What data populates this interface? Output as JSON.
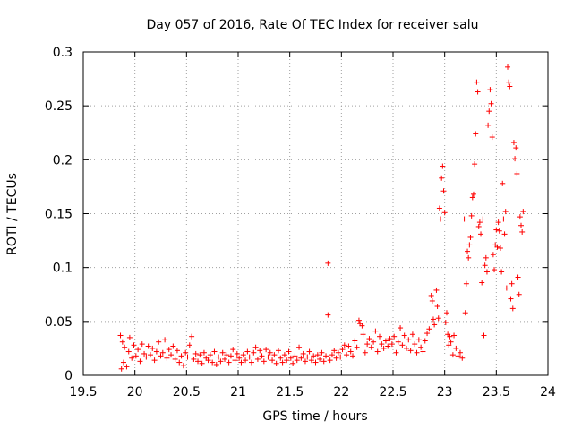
{
  "chart_data": {
    "type": "scatter",
    "title": "Day 057 of 2016, Rate Of TEC Index for receiver salu",
    "xlabel": "GPS time / hours",
    "ylabel": "ROTI / TECUs",
    "xlim": [
      19.5,
      24
    ],
    "ylim": [
      0,
      0.3
    ],
    "xticks": [
      19.5,
      20,
      20.5,
      21,
      21.5,
      22,
      22.5,
      23,
      23.5,
      24
    ],
    "xtick_labels": [
      "19.5",
      "20",
      "20.5",
      "21",
      "21.5",
      "22",
      "22.5",
      "23",
      "23.5",
      "24"
    ],
    "yticks": [
      0,
      0.05,
      0.1,
      0.15,
      0.2,
      0.25,
      0.3
    ],
    "ytick_labels": [
      "0",
      "0.05",
      "0.1",
      "0.15",
      "0.2",
      "0.25",
      "0.3"
    ],
    "grid": true,
    "marker": "+",
    "series": [
      {
        "name": "ROTI",
        "color": "#ff0000",
        "points": [
          [
            19.86,
            0.037
          ],
          [
            19.87,
            0.006
          ],
          [
            19.88,
            0.031
          ],
          [
            19.89,
            0.012
          ],
          [
            19.9,
            0.026
          ],
          [
            19.92,
            0.008
          ],
          [
            19.94,
            0.022
          ],
          [
            19.95,
            0.035
          ],
          [
            19.97,
            0.016
          ],
          [
            19.99,
            0.028
          ],
          [
            20.01,
            0.018
          ],
          [
            20.03,
            0.024
          ],
          [
            20.05,
            0.013
          ],
          [
            20.07,
            0.029
          ],
          [
            20.09,
            0.02
          ],
          [
            20.11,
            0.017
          ],
          [
            20.13,
            0.027
          ],
          [
            20.15,
            0.019
          ],
          [
            20.17,
            0.025
          ],
          [
            20.19,
            0.014
          ],
          [
            20.21,
            0.022
          ],
          [
            20.23,
            0.031
          ],
          [
            20.25,
            0.018
          ],
          [
            20.27,
            0.021
          ],
          [
            20.29,
            0.033
          ],
          [
            20.31,
            0.016
          ],
          [
            20.33,
            0.024
          ],
          [
            20.35,
            0.019
          ],
          [
            20.37,
            0.027
          ],
          [
            20.39,
            0.015
          ],
          [
            20.41,
            0.023
          ],
          [
            20.43,
            0.012
          ],
          [
            20.45,
            0.018
          ],
          [
            20.47,
            0.009
          ],
          [
            20.49,
            0.021
          ],
          [
            20.51,
            0.017
          ],
          [
            20.53,
            0.028
          ],
          [
            20.55,
            0.036
          ],
          [
            20.57,
            0.015
          ],
          [
            20.59,
            0.02
          ],
          [
            20.61,
            0.013
          ],
          [
            20.63,
            0.019
          ],
          [
            20.65,
            0.011
          ],
          [
            20.67,
            0.021
          ],
          [
            20.69,
            0.016
          ],
          [
            20.71,
            0.014
          ],
          [
            20.73,
            0.019
          ],
          [
            20.75,
            0.012
          ],
          [
            20.77,
            0.022
          ],
          [
            20.79,
            0.01
          ],
          [
            20.81,
            0.017
          ],
          [
            20.83,
            0.013
          ],
          [
            20.85,
            0.021
          ],
          [
            20.87,
            0.015
          ],
          [
            20.89,
            0.019
          ],
          [
            20.91,
            0.012
          ],
          [
            20.93,
            0.018
          ],
          [
            20.95,
            0.024
          ],
          [
            20.97,
            0.014
          ],
          [
            20.99,
            0.02
          ],
          [
            21.01,
            0.016
          ],
          [
            21.03,
            0.012
          ],
          [
            21.05,
            0.019
          ],
          [
            21.07,
            0.014
          ],
          [
            21.09,
            0.022
          ],
          [
            21.11,
            0.017
          ],
          [
            21.13,
            0.012
          ],
          [
            21.15,
            0.021
          ],
          [
            21.17,
            0.026
          ],
          [
            21.19,
            0.015
          ],
          [
            21.21,
            0.023
          ],
          [
            21.23,
            0.018
          ],
          [
            21.25,
            0.013
          ],
          [
            21.27,
            0.024
          ],
          [
            21.29,
            0.017
          ],
          [
            21.31,
            0.021
          ],
          [
            21.33,
            0.014
          ],
          [
            21.35,
            0.019
          ],
          [
            21.37,
            0.011
          ],
          [
            21.39,
            0.023
          ],
          [
            21.41,
            0.016
          ],
          [
            21.43,
            0.012
          ],
          [
            21.45,
            0.019
          ],
          [
            21.47,
            0.014
          ],
          [
            21.49,
            0.022
          ],
          [
            21.51,
            0.016
          ],
          [
            21.53,
            0.011
          ],
          [
            21.55,
            0.018
          ],
          [
            21.57,
            0.014
          ],
          [
            21.59,
            0.026
          ],
          [
            21.61,
            0.016
          ],
          [
            21.63,
            0.02
          ],
          [
            21.65,
            0.013
          ],
          [
            21.67,
            0.017
          ],
          [
            21.69,
            0.022
          ],
          [
            21.71,
            0.014
          ],
          [
            21.73,
            0.018
          ],
          [
            21.75,
            0.012
          ],
          [
            21.77,
            0.019
          ],
          [
            21.79,
            0.015
          ],
          [
            21.81,
            0.021
          ],
          [
            21.83,
            0.013
          ],
          [
            21.85,
            0.018
          ],
          [
            21.87,
            0.104
          ],
          [
            21.87,
            0.056
          ],
          [
            21.89,
            0.014
          ],
          [
            21.91,
            0.019
          ],
          [
            21.93,
            0.023
          ],
          [
            21.95,
            0.016
          ],
          [
            21.97,
            0.021
          ],
          [
            21.99,
            0.017
          ],
          [
            22.01,
            0.024
          ],
          [
            22.03,
            0.028
          ],
          [
            22.05,
            0.019
          ],
          [
            22.07,
            0.027
          ],
          [
            22.09,
            0.022
          ],
          [
            22.11,
            0.018
          ],
          [
            22.13,
            0.032
          ],
          [
            22.15,
            0.026
          ],
          [
            22.17,
            0.051
          ],
          [
            22.18,
            0.048
          ],
          [
            22.2,
            0.046
          ],
          [
            22.21,
            0.038
          ],
          [
            22.23,
            0.021
          ],
          [
            22.25,
            0.029
          ],
          [
            22.27,
            0.034
          ],
          [
            22.29,
            0.026
          ],
          [
            22.31,
            0.031
          ],
          [
            22.33,
            0.041
          ],
          [
            22.35,
            0.022
          ],
          [
            22.37,
            0.036
          ],
          [
            22.39,
            0.029
          ],
          [
            22.41,
            0.025
          ],
          [
            22.43,
            0.032
          ],
          [
            22.45,
            0.027
          ],
          [
            22.47,
            0.034
          ],
          [
            22.49,
            0.029
          ],
          [
            22.51,
            0.036
          ],
          [
            22.53,
            0.021
          ],
          [
            22.55,
            0.031
          ],
          [
            22.57,
            0.044
          ],
          [
            22.59,
            0.028
          ],
          [
            22.61,
            0.037
          ],
          [
            22.63,
            0.025
          ],
          [
            22.65,
            0.033
          ],
          [
            22.67,
            0.023
          ],
          [
            22.69,
            0.038
          ],
          [
            22.71,
            0.029
          ],
          [
            22.73,
            0.021
          ],
          [
            22.75,
            0.033
          ],
          [
            22.77,
            0.026
          ],
          [
            22.79,
            0.022
          ],
          [
            22.81,
            0.032
          ],
          [
            22.83,
            0.039
          ],
          [
            22.85,
            0.043
          ],
          [
            22.87,
            0.074
          ],
          [
            22.88,
            0.069
          ],
          [
            22.89,
            0.052
          ],
          [
            22.9,
            0.047
          ],
          [
            22.92,
            0.079
          ],
          [
            22.93,
            0.064
          ],
          [
            22.94,
            0.053
          ],
          [
            22.95,
            0.155
          ],
          [
            22.96,
            0.145
          ],
          [
            22.97,
            0.183
          ],
          [
            22.98,
            0.194
          ],
          [
            22.99,
            0.171
          ],
          [
            23.0,
            0.151
          ],
          [
            23.01,
            0.049
          ],
          [
            23.02,
            0.058
          ],
          [
            23.03,
            0.038
          ],
          [
            23.04,
            0.028
          ],
          [
            23.05,
            0.036
          ],
          [
            23.06,
            0.031
          ],
          [
            23.08,
            0.019
          ],
          [
            23.09,
            0.037
          ],
          [
            23.11,
            0.025
          ],
          [
            23.13,
            0.018
          ],
          [
            23.15,
            0.021
          ],
          [
            23.17,
            0.016
          ],
          [
            23.19,
            0.145
          ],
          [
            23.2,
            0.058
          ],
          [
            23.21,
            0.085
          ],
          [
            23.22,
            0.115
          ],
          [
            23.23,
            0.109
          ],
          [
            23.24,
            0.121
          ],
          [
            23.25,
            0.128
          ],
          [
            23.26,
            0.148
          ],
          [
            23.27,
            0.165
          ],
          [
            23.28,
            0.168
          ],
          [
            23.29,
            0.196
          ],
          [
            23.3,
            0.224
          ],
          [
            23.31,
            0.272
          ],
          [
            23.32,
            0.263
          ],
          [
            23.33,
            0.138
          ],
          [
            23.34,
            0.142
          ],
          [
            23.35,
            0.131
          ],
          [
            23.36,
            0.086
          ],
          [
            23.37,
            0.145
          ],
          [
            23.38,
            0.037
          ],
          [
            23.39,
            0.102
          ],
          [
            23.4,
            0.109
          ],
          [
            23.41,
            0.096
          ],
          [
            23.42,
            0.232
          ],
          [
            23.43,
            0.245
          ],
          [
            23.44,
            0.265
          ],
          [
            23.45,
            0.252
          ],
          [
            23.46,
            0.221
          ],
          [
            23.47,
            0.112
          ],
          [
            23.48,
            0.098
          ],
          [
            23.49,
            0.121
          ],
          [
            23.5,
            0.135
          ],
          [
            23.51,
            0.119
          ],
          [
            23.52,
            0.142
          ],
          [
            23.53,
            0.134
          ],
          [
            23.54,
            0.118
          ],
          [
            23.55,
            0.096
          ],
          [
            23.56,
            0.178
          ],
          [
            23.57,
            0.145
          ],
          [
            23.58,
            0.131
          ],
          [
            23.59,
            0.152
          ],
          [
            23.6,
            0.081
          ],
          [
            23.61,
            0.286
          ],
          [
            23.62,
            0.272
          ],
          [
            23.63,
            0.268
          ],
          [
            23.64,
            0.071
          ],
          [
            23.65,
            0.085
          ],
          [
            23.66,
            0.062
          ],
          [
            23.67,
            0.216
          ],
          [
            23.68,
            0.201
          ],
          [
            23.69,
            0.211
          ],
          [
            23.7,
            0.187
          ],
          [
            23.71,
            0.091
          ],
          [
            23.72,
            0.075
          ],
          [
            23.73,
            0.147
          ],
          [
            23.74,
            0.139
          ],
          [
            23.75,
            0.133
          ],
          [
            23.76,
            0.152
          ]
        ]
      }
    ]
  }
}
